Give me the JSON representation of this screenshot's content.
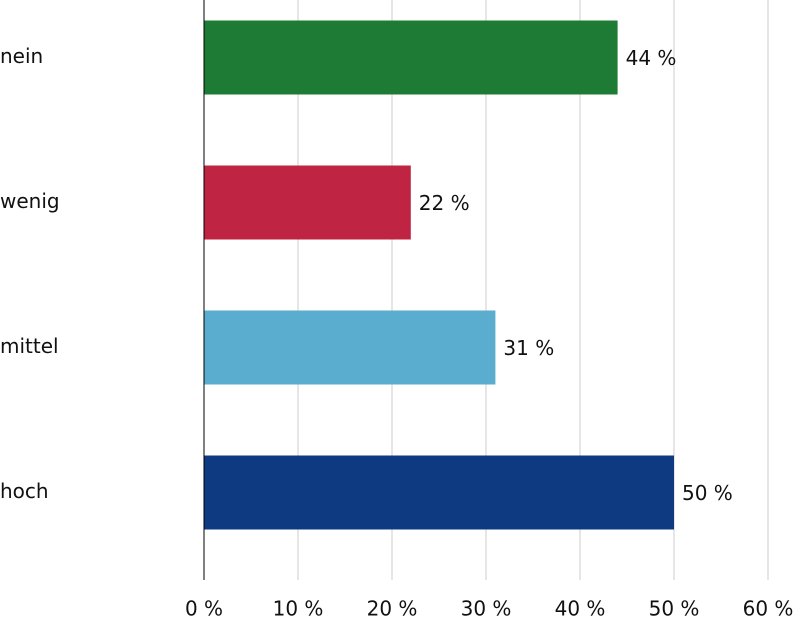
{
  "chart_data": {
    "type": "hbar",
    "categories": [
      "nein",
      "wenig",
      "mittel",
      "hoch"
    ],
    "values": [
      44,
      22,
      31,
      50
    ],
    "value_labels": [
      "44 %",
      "22 %",
      "31 %",
      "50 %"
    ],
    "colors": [
      "#1e7b35",
      "#c02443",
      "#5aadcf",
      "#0d3a80"
    ],
    "xlim": [
      0,
      60
    ],
    "xticks": [
      {
        "value": 0,
        "label": "0 %"
      },
      {
        "value": 10,
        "label": "10 %"
      },
      {
        "value": 20,
        "label": "20 %"
      },
      {
        "value": 30,
        "label": "30 %"
      },
      {
        "value": 40,
        "label": "40 %"
      },
      {
        "value": 50,
        "label": "50 %"
      },
      {
        "value": 60,
        "label": "60 %"
      }
    ],
    "grid": true
  }
}
